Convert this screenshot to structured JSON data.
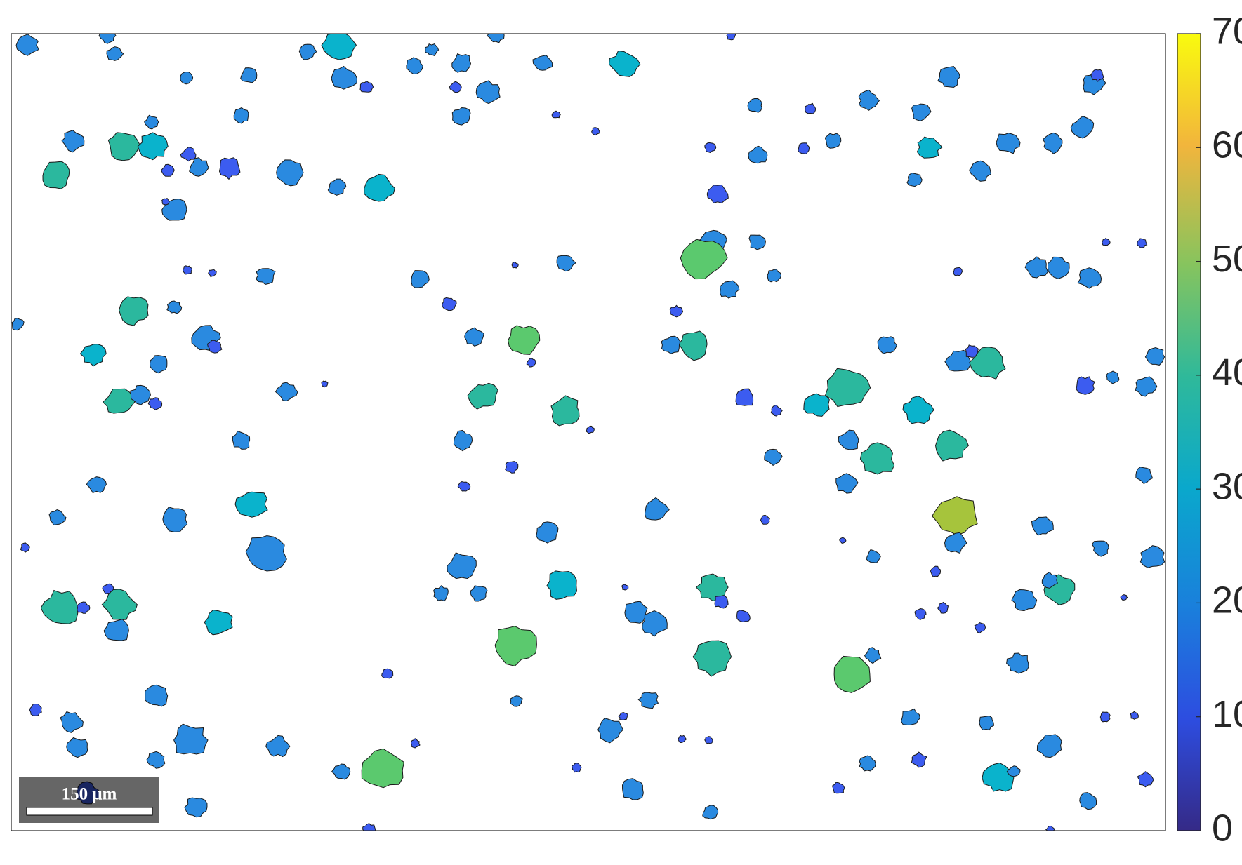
{
  "chart_data": {
    "type": "colorbar",
    "ylim": [
      0,
      70
    ],
    "yticks": [
      0,
      10,
      20,
      30,
      40,
      50,
      60,
      70
    ]
  },
  "scale_bar": {
    "label": "150 μm"
  }
}
